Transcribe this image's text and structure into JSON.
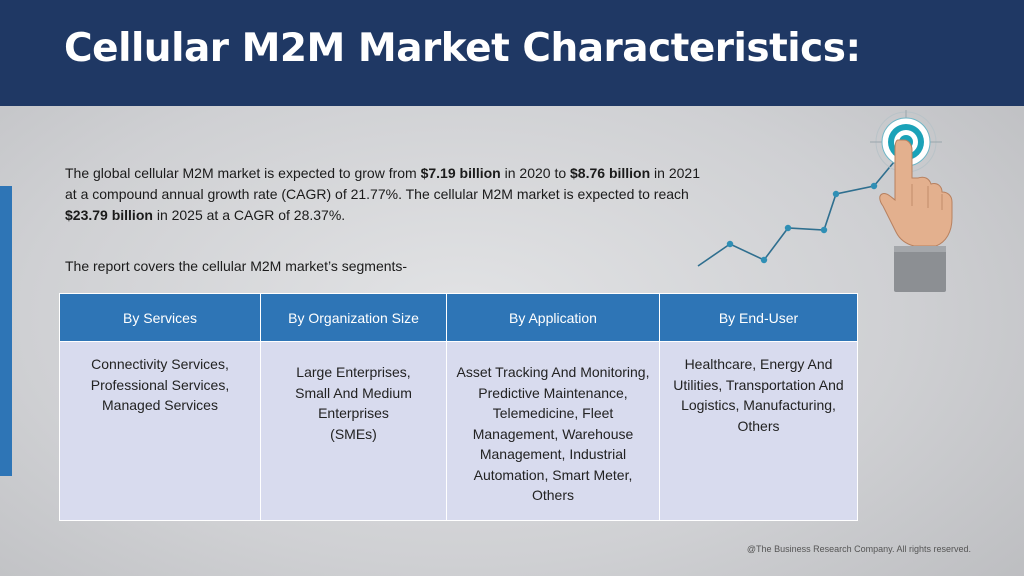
{
  "header": {
    "title": "Cellular M2M Market Characteristics:"
  },
  "intro": {
    "parts": [
      {
        "text": "The global cellular M2M market is expected to grow from ",
        "bold": false
      },
      {
        "text": "$7.19 billion",
        "bold": true
      },
      {
        "text": " in 2020 to ",
        "bold": false
      },
      {
        "text": "$8.76 billion",
        "bold": true
      },
      {
        "text": " in 2021 at a compound annual growth rate (CAGR) of 21.77%. The cellular M2M market is expected to reach ",
        "bold": false
      },
      {
        "text": "$23.79 billion",
        "bold": true
      },
      {
        "text": " in 2025 at a CAGR of 28.37%.",
        "bold": false
      }
    ]
  },
  "segments_note": "The report covers the cellular M2M market’s segments-",
  "table": {
    "headers": [
      "By Services",
      "By Organization Size",
      "By Application",
      "By End-User"
    ],
    "cells": [
      "Connectivity Services, Professional Services, Managed Services",
      "Large Enterprises, Small And Medium Enterprises (SMEs)",
      "Asset Tracking And Monitoring, Predictive Maintenance, Telemedicine, Fleet Management, Warehouse Management, Industrial Automation, Smart Meter, Others",
      "Healthcare, Energy And Utilities, Transportation And Logistics, Manufacturing, Others"
    ]
  },
  "footer": "@The Business Research Company. All rights reserved.",
  "colors": {
    "header_bg": "#1f3864",
    "accent": "#2e75b6",
    "cell_bg": "#d8dbee"
  }
}
